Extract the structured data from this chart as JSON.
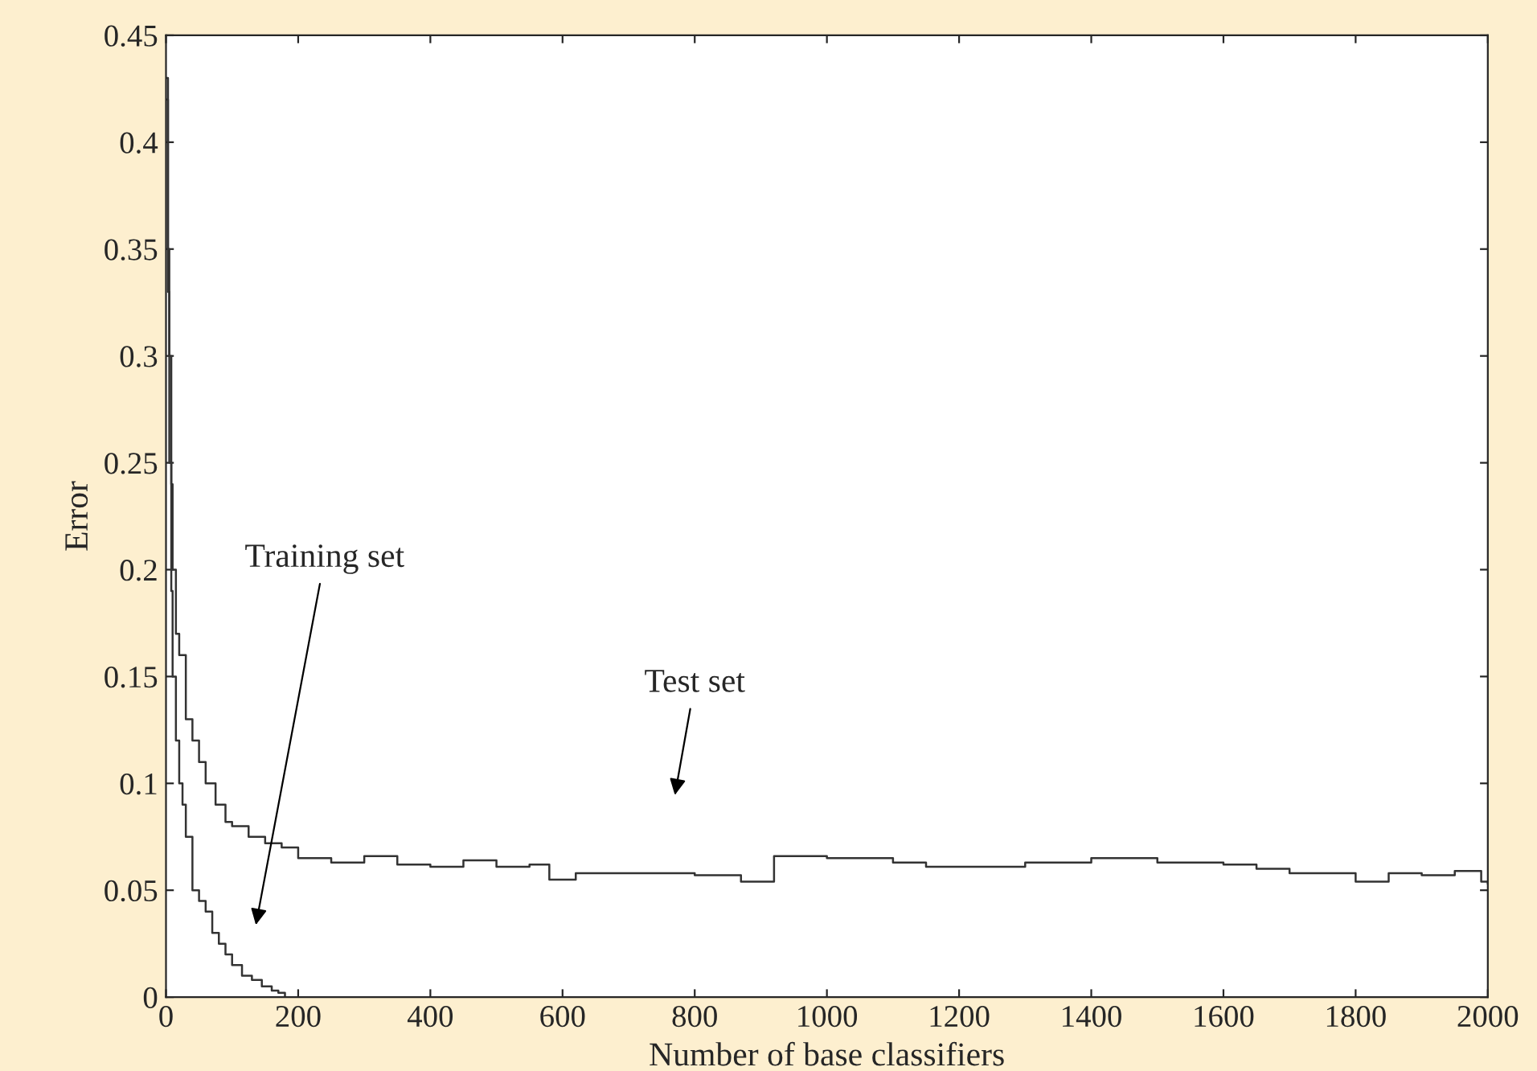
{
  "chart_data": {
    "type": "step",
    "xlabel": "Number of base classifiers",
    "ylabel": "Error",
    "xlim": [
      0,
      2000
    ],
    "xticks": [
      0,
      200,
      400,
      600,
      800,
      1000,
      1200,
      1400,
      1600,
      1800,
      2000
    ],
    "ylim": [
      0,
      0.45
    ],
    "yticks": [
      0,
      0.05,
      0.1,
      0.15,
      0.2,
      0.25,
      0.3,
      0.35,
      0.4,
      0.45
    ],
    "grid": false,
    "legend": false,
    "marker": "none",
    "line_style": "solid",
    "annotations": [
      "Training set",
      "Test set"
    ],
    "series": [
      {
        "color": "#333333",
        "x": [
          0,
          3,
          5,
          8,
          10,
          15,
          20,
          30,
          40,
          50,
          60,
          75,
          90,
          100,
          125,
          150,
          175,
          200,
          250,
          300,
          350,
          400,
          450,
          500,
          550,
          580,
          620,
          700,
          800,
          870,
          920,
          1000,
          1100,
          1150,
          1200,
          1300,
          1400,
          1500,
          1600,
          1650,
          1700,
          1800,
          1850,
          1900,
          1950,
          1990,
          2000
        ],
        "values": [
          0.42,
          0.35,
          0.3,
          0.24,
          0.2,
          0.17,
          0.16,
          0.13,
          0.12,
          0.11,
          0.1,
          0.09,
          0.082,
          0.08,
          0.075,
          0.072,
          0.07,
          0.065,
          0.063,
          0.066,
          0.062,
          0.061,
          0.064,
          0.061,
          0.062,
          0.055,
          0.058,
          0.058,
          0.057,
          0.054,
          0.066,
          0.065,
          0.063,
          0.061,
          0.061,
          0.063,
          0.065,
          0.063,
          0.062,
          0.06,
          0.058,
          0.054,
          0.058,
          0.057,
          0.059,
          0.054,
          0.053
        ]
      },
      {
        "color": "#333333",
        "x": [
          0,
          3,
          5,
          8,
          10,
          15,
          20,
          25,
          30,
          40,
          50,
          60,
          70,
          80,
          90,
          100,
          115,
          130,
          145,
          160,
          170,
          180
        ],
        "values": [
          0.43,
          0.33,
          0.25,
          0.19,
          0.15,
          0.12,
          0.1,
          0.09,
          0.075,
          0.05,
          0.045,
          0.04,
          0.03,
          0.025,
          0.02,
          0.015,
          0.01,
          0.008,
          0.005,
          0.003,
          0.002,
          0.0
        ]
      }
    ]
  }
}
